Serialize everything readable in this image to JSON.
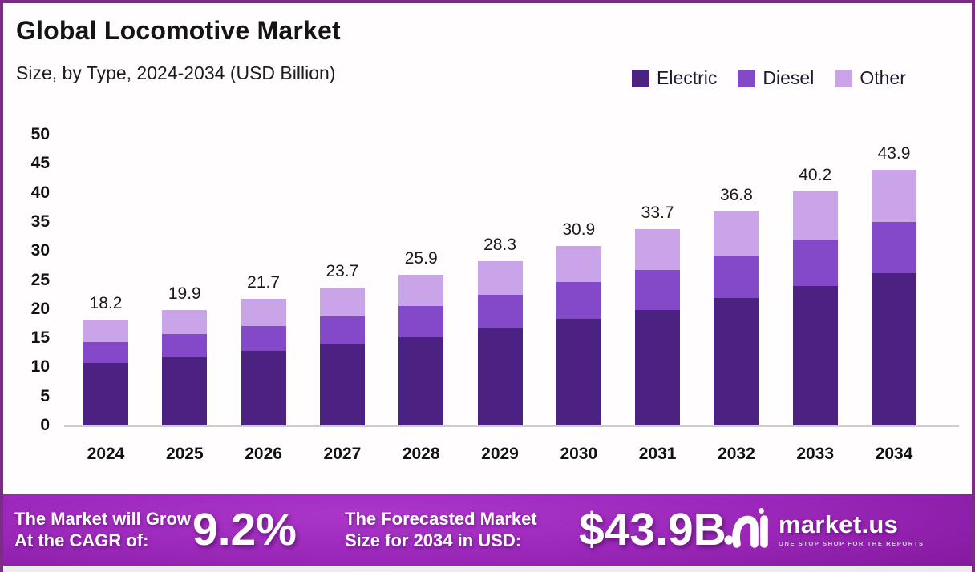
{
  "header": {
    "title": "Global Locomotive Market",
    "subtitle": "Size, by Type, 2024-2034 (USD Billion)"
  },
  "legend": [
    {
      "label": "Electric",
      "color": "#4b2182"
    },
    {
      "label": "Diesel",
      "color": "#8449c8"
    },
    {
      "label": "Other",
      "color": "#c9a4e8"
    }
  ],
  "chart_data": {
    "type": "bar",
    "stacked": true,
    "title": "Global Locomotive Market Size, by Type, 2024-2034 (USD Billion)",
    "categories": [
      "2024",
      "2025",
      "2026",
      "2027",
      "2028",
      "2029",
      "2030",
      "2031",
      "2032",
      "2033",
      "2034"
    ],
    "series": [
      {
        "name": "Electric",
        "color": "#4b2182",
        "values": [
          10.7,
          11.7,
          12.8,
          14.1,
          15.2,
          16.6,
          18.3,
          19.9,
          21.9,
          24.0,
          26.2
        ]
      },
      {
        "name": "Diesel",
        "color": "#8449c8",
        "values": [
          3.6,
          4.0,
          4.3,
          4.7,
          5.3,
          5.9,
          6.3,
          6.8,
          7.2,
          8.0,
          8.8
        ]
      },
      {
        "name": "Other",
        "color": "#c9a4e8",
        "values": [
          3.9,
          4.2,
          4.6,
          4.9,
          5.4,
          5.8,
          6.3,
          7.0,
          7.7,
          8.2,
          8.9
        ]
      }
    ],
    "totals": [
      18.2,
      19.9,
      21.7,
      23.7,
      25.9,
      28.3,
      30.9,
      33.7,
      36.8,
      40.2,
      43.9
    ],
    "xlabel": "",
    "ylabel": "",
    "ylim": [
      0,
      50
    ],
    "yticks": [
      0,
      5,
      10,
      15,
      20,
      25,
      30,
      35,
      40,
      45,
      50
    ],
    "grid": false,
    "legend_position": "top-right"
  },
  "banner": {
    "cagr_label_line1": "The Market will Grow",
    "cagr_label_line2": "At the CAGR of:",
    "cagr_value": "9.2%",
    "forecast_label_line1": "The Forecasted Market",
    "forecast_label_line2": "Size for 2034 in USD:",
    "forecast_value": "$43.9B",
    "brand_name": "market.us",
    "brand_tagline": "ONE STOP SHOP FOR THE REPORTS"
  },
  "colors": {
    "border": "#7b2d86",
    "banner_center": "#a32cc0",
    "banner_edge": "#660e79",
    "axis_line": "#cccccc",
    "background": "#fffdfe"
  }
}
